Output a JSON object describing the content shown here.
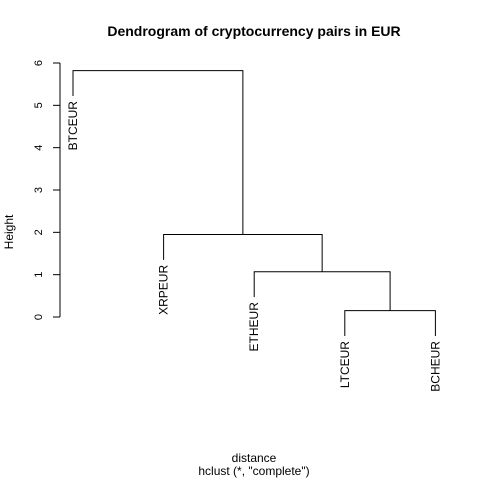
{
  "chart_data": {
    "type": "dendrogram",
    "title": "Dendrogram of cryptocurrency pairs in EUR",
    "xlabel": "distance",
    "subtitle": "hclust (*, \"complete\")",
    "ylabel": "Height",
    "ylim": [
      0,
      6
    ],
    "yticks": [
      "0",
      "1",
      "2",
      "3",
      "4",
      "5",
      "6"
    ],
    "leaves": [
      "BTCEUR",
      "XRPEUR",
      "ETHEUR",
      "LTCEUR",
      "BCHEUR"
    ],
    "merges": [
      {
        "left": "LTCEUR",
        "right": "BCHEUR",
        "height": 0.15
      },
      {
        "left": "ETHEUR",
        "right": "LTCEUR+BCHEUR",
        "height": 1.07
      },
      {
        "left": "XRPEUR",
        "right": "ETHEUR+LTCEUR+BCHEUR",
        "height": 1.95
      },
      {
        "left": "BTCEUR",
        "right": "XRPEUR+ETHEUR+LTCEUR+BCHEUR",
        "height": 5.82
      }
    ]
  }
}
